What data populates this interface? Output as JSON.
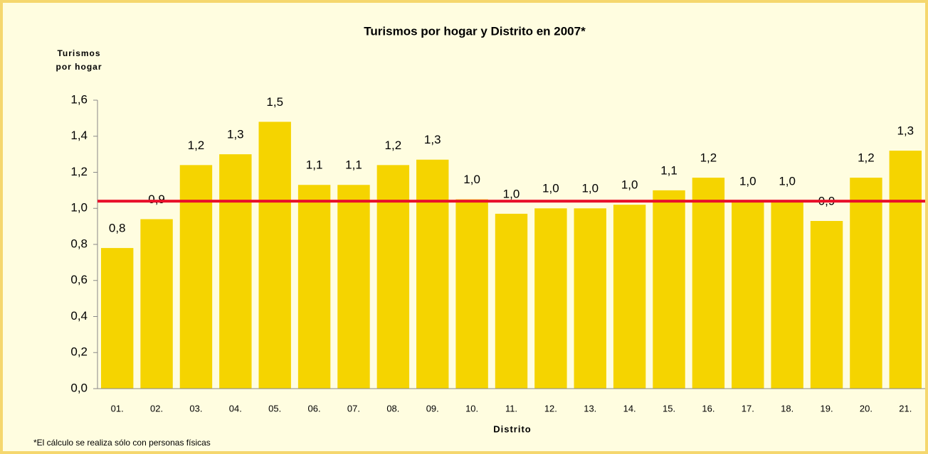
{
  "chart_data": {
    "type": "bar",
    "title": "Turismos por hogar y Distrito en 2007*",
    "y_label": "Turismos por hogar",
    "x_label": "Distrito",
    "footnote": "*El cálculo se realiza sólo con personas físicas",
    "categories": [
      "01.",
      "02.",
      "03.",
      "04.",
      "05.",
      "06.",
      "07.",
      "08.",
      "09.",
      "10.",
      "11.",
      "12.",
      "13.",
      "14.",
      "15.",
      "16.",
      "17.",
      "18.",
      "19.",
      "20.",
      "21."
    ],
    "values": [
      0.78,
      0.94,
      1.24,
      1.3,
      1.48,
      1.13,
      1.13,
      1.24,
      1.27,
      1.05,
      0.97,
      1.0,
      1.0,
      1.02,
      1.1,
      1.17,
      1.04,
      1.04,
      0.93,
      1.17,
      1.32
    ],
    "value_labels": [
      "0,8",
      "0,9",
      "1,2",
      "1,3",
      "1,5",
      "1,1",
      "1,1",
      "1,2",
      "1,3",
      "1,0",
      "1,0",
      "1,0",
      "1,0",
      "1,0",
      "1,1",
      "1,2",
      "1,0",
      "1,0",
      "0,9",
      "1,2",
      "1,3"
    ],
    "color": "#f5d400",
    "reference_line": {
      "value": 1.04,
      "color": "#e8102a"
    },
    "ylim": [
      0,
      1.6
    ],
    "yticks": [
      {
        "value": 0,
        "label": "0,0"
      },
      {
        "value": 0.2,
        "label": "0,2"
      },
      {
        "value": 0.4,
        "label": "0,4"
      },
      {
        "value": 0.6,
        "label": "0,6"
      },
      {
        "value": 0.8,
        "label": "0,8"
      },
      {
        "value": 1.0,
        "label": "1,0"
      },
      {
        "value": 1.2,
        "label": "1,2"
      },
      {
        "value": 1.4,
        "label": "1,4"
      },
      {
        "value": 1.6,
        "label": "1,6"
      }
    ],
    "grid": false
  }
}
